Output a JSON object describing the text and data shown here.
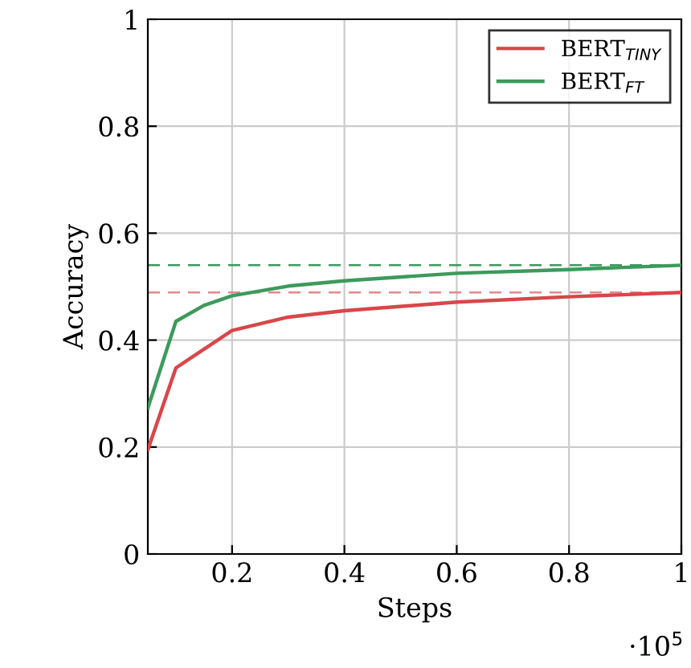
{
  "chart_data": {
    "type": "line",
    "xlabel": "Steps",
    "ylabel": "Accuracy",
    "annotations": [
      "·10$^{5}$"
    ],
    "xlim": [
      0.05,
      1
    ],
    "xticks": [
      0.2,
      0.4,
      0.6,
      0.8,
      1
    ],
    "ylim": [
      0,
      1
    ],
    "yticks": [
      0,
      0.2,
      0.4,
      0.6,
      0.8,
      1
    ],
    "grid": true,
    "legend": "top right",
    "marker": "none",
    "line_style": "solid",
    "series": [
      {
        "name": "BERT$_{TINY}$",
        "color": "#d9464a",
        "x": [
          0.05,
          0.1,
          0.15,
          0.2,
          0.3,
          0.4,
          0.6,
          0.8,
          1
        ],
        "values": [
          0.195,
          0.348,
          0.383,
          0.418,
          0.443,
          0.455,
          0.471,
          0.481,
          0.489
        ]
      },
      {
        "name": "BERT$_{FT}$",
        "color": "#3d9a5c",
        "x": [
          0.05,
          0.1,
          0.15,
          0.2,
          0.3,
          0.4,
          0.6,
          0.8,
          1
        ],
        "values": [
          0.273,
          0.435,
          0.465,
          0.483,
          0.501,
          0.511,
          0.525,
          0.532,
          0.54
        ]
      }
    ],
    "ref_lines": [
      {
        "axis": "y",
        "value": 0.54,
        "color": "#3d9a5c",
        "line_style": "dashed"
      },
      {
        "axis": "y",
        "value": 0.489,
        "color": "#e08a8c",
        "line_style": "dashed"
      }
    ]
  }
}
